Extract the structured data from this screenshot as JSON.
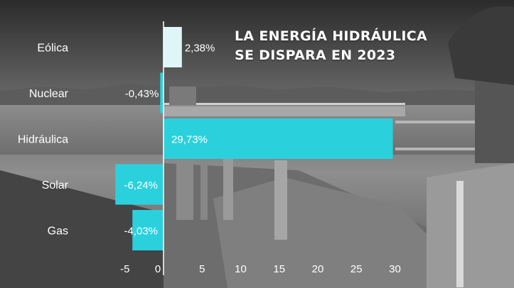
{
  "title_line1": "LA ENERGÍA HIDRÁULICA",
  "title_line2": "SE DISPARA EN 2023",
  "colors": {
    "bar_primary": "#2ad1dd",
    "bar_light": "#dff6f8",
    "axis": "#ffffff",
    "text": "#ffffff"
  },
  "chart_data": {
    "type": "bar",
    "orientation": "horizontal",
    "title": "LA ENERGÍA HIDRÁULICA SE DISPARA EN 2023",
    "categories": [
      "Eólica",
      "Nuclear",
      "Hidráulica",
      "Solar",
      "Gas"
    ],
    "values": [
      2.38,
      -0.43,
      29.73,
      -6.24,
      -4.03
    ],
    "value_labels": [
      "2,38%",
      "-0,43%",
      "29,73%",
      "-6,24%",
      "-4,03%"
    ],
    "x_ticks": [
      -5,
      0,
      5,
      10,
      15,
      20,
      25,
      30
    ],
    "x_tick_labels": [
      "-5",
      "0",
      "5",
      "10",
      "15",
      "20",
      "25",
      "30"
    ],
    "xlim": [
      -7,
      31
    ],
    "grid": false,
    "legend": "none"
  }
}
